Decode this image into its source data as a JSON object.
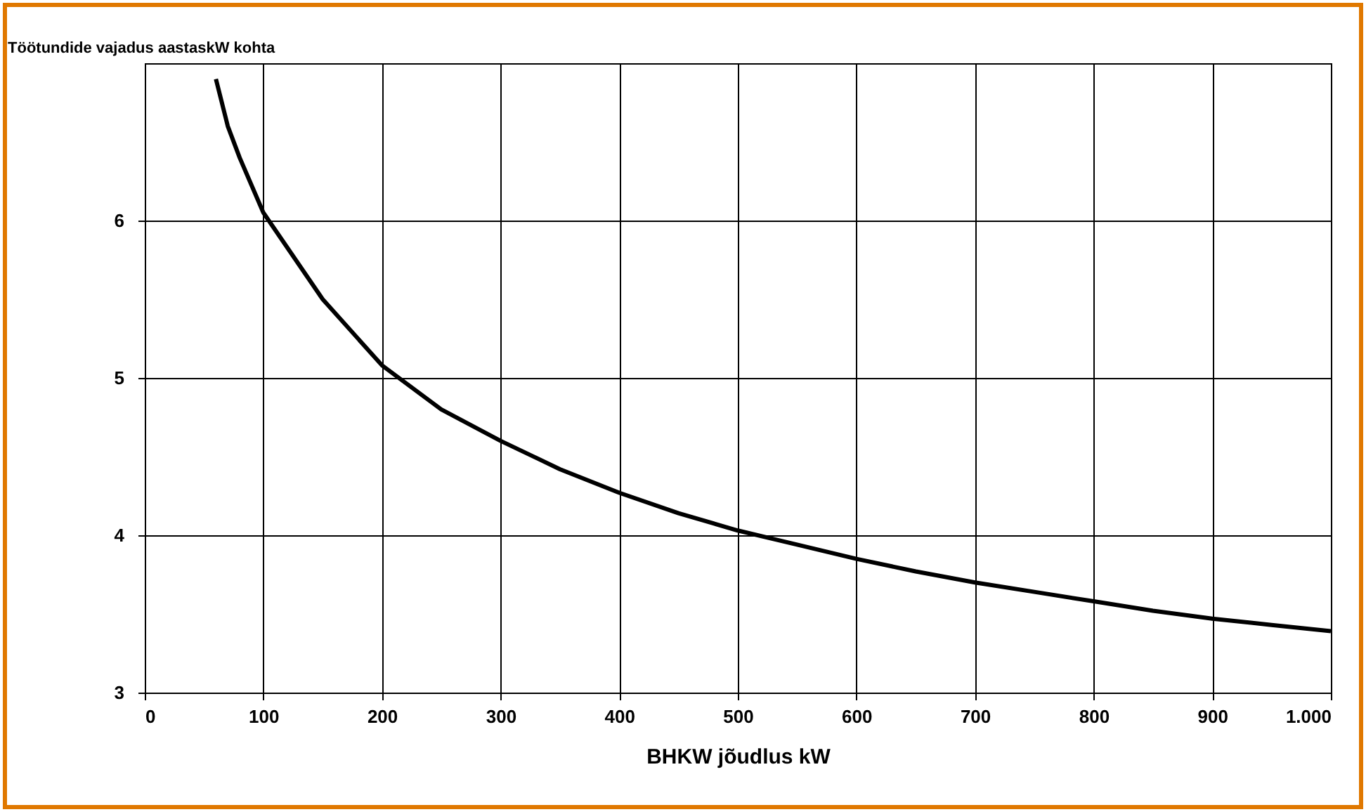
{
  "chart_data": {
    "type": "line",
    "ylabel": "Töötundide vajadus aastaskW kohta",
    "xlabel": "BHKW jõudlus kW",
    "x": [
      60,
      70,
      80,
      100,
      150,
      200,
      250,
      300,
      350,
      400,
      450,
      500,
      550,
      600,
      650,
      700,
      750,
      800,
      850,
      900,
      950,
      1000
    ],
    "series": [
      {
        "color": "#000000",
        "values": [
          6.9,
          6.6,
          6.4,
          6.05,
          5.5,
          5.08,
          4.8,
          4.6,
          4.42,
          4.27,
          4.14,
          4.03,
          3.94,
          3.85,
          3.77,
          3.7,
          3.64,
          3.58,
          3.52,
          3.47,
          3.43,
          3.39
        ]
      }
    ],
    "xlim": [
      0,
      1000
    ],
    "xticks": [
      0,
      100,
      200,
      300,
      400,
      500,
      600,
      700,
      800,
      900,
      {
        "value": 1000,
        "label": "1.000"
      }
    ],
    "ylim": [
      3,
      7
    ],
    "yticks": [
      3,
      4,
      5,
      6
    ],
    "grid": true,
    "marker": "none",
    "line_style": "solid"
  }
}
